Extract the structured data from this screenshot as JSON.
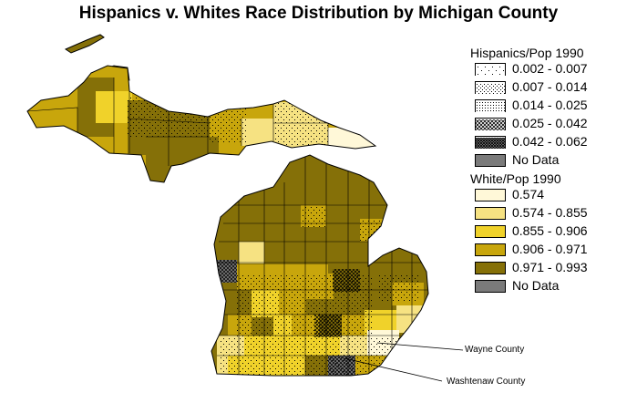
{
  "title": "Hispanics v. Whites Race Distribution by Michigan County",
  "legend_hispanic": {
    "title": "Hispanics/Pop 1990",
    "items": [
      {
        "label": "0.002 - 0.007",
        "pattern": "dots-sparse"
      },
      {
        "label": "0.007 - 0.014",
        "pattern": "dots-medium"
      },
      {
        "label": "0.014 - 0.025",
        "pattern": "dots-dense"
      },
      {
        "label": "0.025 - 0.042",
        "pattern": "crosshatch"
      },
      {
        "label": "0.042 - 0.062",
        "pattern": "crosshatch-dark"
      },
      {
        "label": "No Data",
        "pattern": "gray"
      }
    ]
  },
  "legend_white": {
    "title": "White/Pop 1990",
    "items": [
      {
        "label": "0.574",
        "color": "#fff8d8"
      },
      {
        "label": "0.574 - 0.855",
        "color": "#f6e282"
      },
      {
        "label": "0.855 - 0.906",
        "color": "#f0d22a"
      },
      {
        "label": "0.906 - 0.971",
        "color": "#c8a60c"
      },
      {
        "label": "0.971 - 0.993",
        "color": "#857008"
      },
      {
        "label": "No Data",
        "color": "#7a7a7a"
      }
    ]
  },
  "callouts": {
    "wayne": "Wayne County",
    "washtenaw": "Washtenaw County"
  }
}
